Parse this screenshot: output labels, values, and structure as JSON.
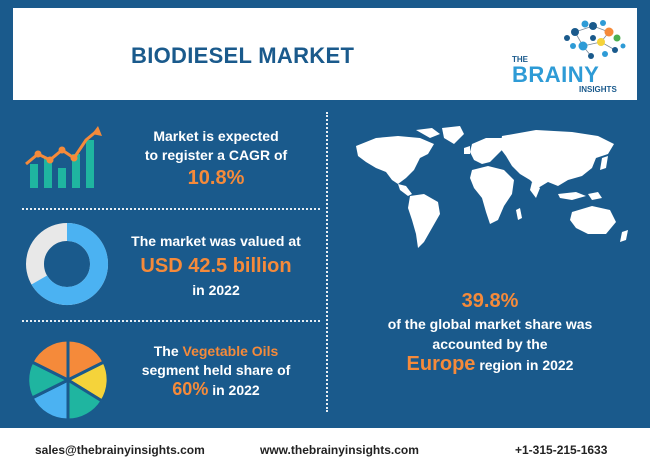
{
  "header": {
    "title": "BIODIESEL MARKET",
    "logo": {
      "the": "THE",
      "brainy": "BRAINY",
      "insights": "INSIGHTS"
    }
  },
  "stats": {
    "cagr": {
      "line1": "Market is expected",
      "line2": "to register a CAGR of",
      "value": "10.8%"
    },
    "valuation": {
      "line1": "The market was valued at",
      "value": "USD 42.5 billion",
      "line2": "in 2022"
    },
    "segment": {
      "prefix": "The",
      "segment": "Vegetable Oils",
      "line2": "segment held share of",
      "value": "60%",
      "suffix": "in 2022"
    },
    "region": {
      "value": "39.8%",
      "line1": "of the global market share was",
      "line2": "accounted by the",
      "region": "Europe",
      "suffix": "region in 2022"
    }
  },
  "footer": {
    "email": "sales@thebrainyinsights.com",
    "website": "www.thebrainyinsights.com",
    "phone": "+1-315-215-1633"
  },
  "colors": {
    "background": "#1a5a8c",
    "accent": "#f58a3a",
    "teal": "#1fb5a0",
    "light_blue": "#4bb2f2",
    "yellow": "#f5d33a"
  },
  "icons": [
    "growth-chart-icon",
    "donut-chart-icon",
    "pie-chart-icon",
    "world-map"
  ]
}
